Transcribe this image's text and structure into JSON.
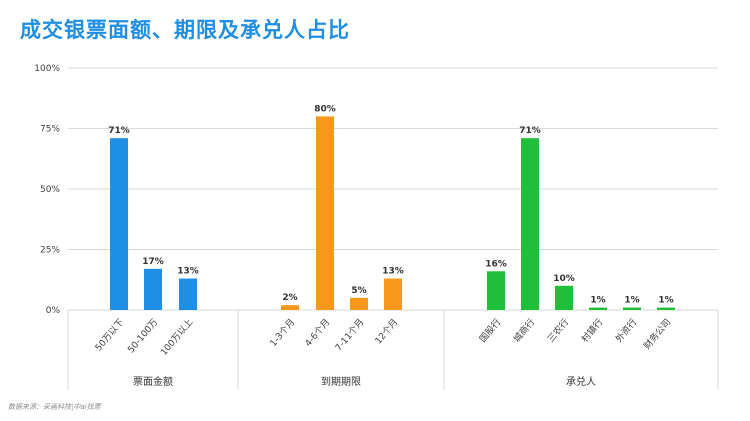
{
  "title": "成交银票面额、期限及承兑人占比",
  "source": "数据来源：采画科技|中ai找票",
  "colors": {
    "title": "#1f8fe6",
    "grid": "#d9d9d9",
    "axis_text": "#404040"
  },
  "chart_data": {
    "type": "bar",
    "ylim": [
      0,
      100
    ],
    "yticks": [
      "0%",
      "25%",
      "50%",
      "75%",
      "100%"
    ],
    "grid": true,
    "groups": [
      {
        "name": "票面金额",
        "color": "#1f8fe6",
        "categories": [
          "50万以下",
          "50-100万",
          "100万以上"
        ],
        "values": [
          71,
          17,
          13
        ],
        "labels": [
          "71%",
          "17%",
          "13%"
        ]
      },
      {
        "name": "到期期限",
        "color": "#f7981d",
        "categories": [
          "1-3个月",
          "4-6个月",
          "7-11个月",
          "12个月"
        ],
        "values": [
          2,
          80,
          5,
          13
        ],
        "labels": [
          "2%",
          "80%",
          "5%",
          "13%"
        ]
      },
      {
        "name": "承兑人",
        "color": "#1fbf3a",
        "categories": [
          "国股行",
          "城商行",
          "三农行",
          "村镇行",
          "外资行",
          "财务公司"
        ],
        "values": [
          16,
          71,
          10,
          1,
          1,
          1
        ],
        "labels": [
          "16%",
          "71%",
          "10%",
          "1%",
          "1%",
          "1%"
        ]
      }
    ]
  }
}
